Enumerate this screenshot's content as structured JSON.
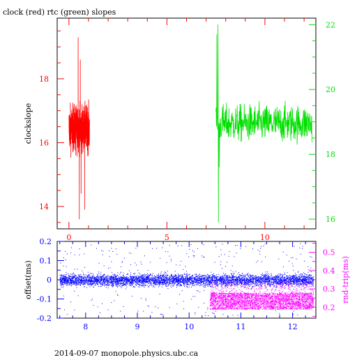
{
  "colors": {
    "clock": "#ff0000",
    "rtc": "#00e000",
    "offset": "#0000ff",
    "rndtrip": "#ff00ff",
    "axis": "#000000"
  },
  "footer": "2014-09-07 monopole.physics.ubc.ca",
  "chart_data": [
    {
      "type": "line",
      "title": "clock (red) rtc (green) slopes",
      "xlabel": "",
      "ylabel": "clockslope",
      "xlim": [
        -0.6,
        12.6
      ],
      "x_ticks": [
        0,
        5,
        10
      ],
      "ylim_left": [
        13.3,
        19.9
      ],
      "y_ticks_left": [
        14,
        16,
        18
      ],
      "ylim_right": [
        15.7,
        22.2
      ],
      "y_ticks_right": [
        16,
        18,
        20,
        22
      ],
      "left_axis_color": "#ff0000",
      "right_axis_color": "#00e000",
      "series": [
        {
          "name": "clock",
          "axis": "left",
          "color": "#ff0000",
          "x_range": [
            0.0,
            1.05
          ],
          "baseline": 16.45,
          "noise": 0.35,
          "spikes": [
            {
              "x": 0.47,
              "y": 19.3
            },
            {
              "x": 0.53,
              "y": 13.6
            },
            {
              "x": 0.58,
              "y": 18.6
            },
            {
              "x": 0.62,
              "y": 14.4
            },
            {
              "x": 0.8,
              "y": 13.9
            },
            {
              "x": 0.35,
              "y": 15.6
            }
          ]
        },
        {
          "name": "rtc",
          "axis": "right",
          "color": "#00e000",
          "x_range": [
            7.5,
            12.4
          ],
          "baseline": 18.95,
          "noise": 0.28,
          "spikes": [
            {
              "x": 7.55,
              "y": 21.7
            },
            {
              "x": 7.6,
              "y": 22.0
            },
            {
              "x": 7.63,
              "y": 15.9
            },
            {
              "x": 7.68,
              "y": 17.6
            },
            {
              "x": 11.0,
              "y": 19.5
            },
            {
              "x": 10.2,
              "y": 19.3
            }
          ]
        }
      ]
    },
    {
      "type": "scatter",
      "title": "",
      "xlabel": "",
      "ylabel_left": "offset(ms)",
      "ylabel_right": "rnd-trip(ms)",
      "xlim": [
        7.45,
        12.45
      ],
      "x_ticks": [
        8,
        9,
        10,
        11,
        12
      ],
      "ylim_left": [
        -0.2,
        0.2
      ],
      "y_ticks_left": [
        -0.2,
        -0.1,
        0,
        0.1,
        0.2
      ],
      "ylim_right": [
        0.14,
        0.56
      ],
      "y_ticks_right": [
        0.2,
        0.3,
        0.4,
        0.5
      ],
      "left_axis_color": "#0000ff",
      "right_axis_color": "#ff00ff",
      "series": [
        {
          "name": "offset",
          "axis": "left",
          "color": "#0000ff",
          "x_range": [
            7.5,
            12.4
          ],
          "center": 0.0,
          "spread": 0.015,
          "outlier_fraction": 0.06
        },
        {
          "name": "rnd-trip",
          "axis": "right",
          "color": "#ff00ff",
          "x_range": [
            10.4,
            12.4
          ],
          "band": [
            0.19,
            0.28
          ],
          "outlier_fraction": 0.08
        }
      ]
    }
  ]
}
